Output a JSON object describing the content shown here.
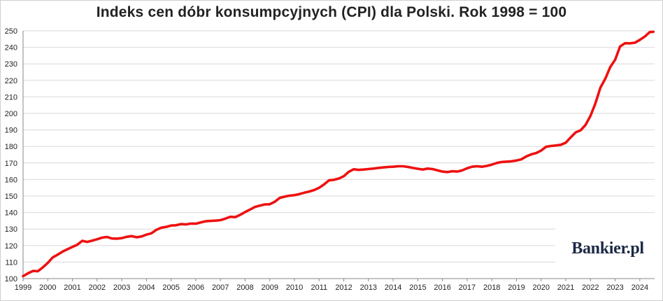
{
  "title": "Indeks cen dóbr konsumpcyjnych (CPI) dla Polski. Rok 1998 = 100",
  "logo_text": "Bankier.pl",
  "colors": {
    "line": "#ee1111",
    "grid": "#d9d9d9",
    "axis": "#888888"
  },
  "chart_data": {
    "type": "line",
    "title": "Indeks cen dóbr konsumpcyjnych (CPI) dla Polski. Rok 1998 = 100",
    "xlabel": "",
    "ylabel": "",
    "xlim": [
      1999,
      2024.6
    ],
    "ylim": [
      100,
      250
    ],
    "x_ticks": [
      1999,
      2000,
      2001,
      2002,
      2003,
      2004,
      2005,
      2006,
      2007,
      2008,
      2009,
      2010,
      2011,
      2012,
      2013,
      2014,
      2015,
      2016,
      2017,
      2018,
      2019,
      2020,
      2021,
      2022,
      2023,
      2024
    ],
    "y_ticks": [
      100,
      110,
      120,
      130,
      140,
      150,
      160,
      170,
      180,
      190,
      200,
      210,
      220,
      230,
      240,
      250
    ],
    "grid": true,
    "legend": "none",
    "series": [
      {
        "name": "",
        "points": [
          [
            1999.0,
            101.5
          ],
          [
            1999.2,
            103.2
          ],
          [
            1999.4,
            104.6
          ],
          [
            1999.6,
            104.5
          ],
          [
            1999.8,
            106.8
          ],
          [
            2000.0,
            109.5
          ],
          [
            2000.2,
            112.8
          ],
          [
            2000.4,
            114.5
          ],
          [
            2000.6,
            116.3
          ],
          [
            2000.8,
            117.8
          ],
          [
            2001.0,
            119.2
          ],
          [
            2001.2,
            120.5
          ],
          [
            2001.4,
            122.9
          ],
          [
            2001.6,
            122.2
          ],
          [
            2001.8,
            123.0
          ],
          [
            2002.0,
            123.8
          ],
          [
            2002.2,
            124.8
          ],
          [
            2002.4,
            125.2
          ],
          [
            2002.6,
            124.3
          ],
          [
            2002.8,
            124.2
          ],
          [
            2003.0,
            124.5
          ],
          [
            2003.2,
            125.3
          ],
          [
            2003.4,
            125.7
          ],
          [
            2003.6,
            125.0
          ],
          [
            2003.8,
            125.5
          ],
          [
            2004.0,
            126.6
          ],
          [
            2004.2,
            127.4
          ],
          [
            2004.4,
            129.5
          ],
          [
            2004.6,
            130.8
          ],
          [
            2004.8,
            131.3
          ],
          [
            2005.0,
            132.1
          ],
          [
            2005.2,
            132.3
          ],
          [
            2005.4,
            133.0
          ],
          [
            2005.6,
            132.8
          ],
          [
            2005.8,
            133.3
          ],
          [
            2006.0,
            133.2
          ],
          [
            2006.2,
            134.0
          ],
          [
            2006.4,
            134.7
          ],
          [
            2006.6,
            134.9
          ],
          [
            2006.8,
            135.1
          ],
          [
            2007.0,
            135.4
          ],
          [
            2007.2,
            136.3
          ],
          [
            2007.4,
            137.4
          ],
          [
            2007.6,
            137.2
          ],
          [
            2007.8,
            138.6
          ],
          [
            2008.0,
            140.3
          ],
          [
            2008.2,
            141.8
          ],
          [
            2008.4,
            143.4
          ],
          [
            2008.6,
            144.2
          ],
          [
            2008.8,
            144.9
          ],
          [
            2009.0,
            145.0
          ],
          [
            2009.2,
            146.5
          ],
          [
            2009.4,
            148.8
          ],
          [
            2009.6,
            149.6
          ],
          [
            2009.8,
            150.2
          ],
          [
            2010.0,
            150.5
          ],
          [
            2010.2,
            151.2
          ],
          [
            2010.4,
            152.0
          ],
          [
            2010.6,
            152.7
          ],
          [
            2010.8,
            153.6
          ],
          [
            2011.0,
            155.0
          ],
          [
            2011.2,
            157.0
          ],
          [
            2011.4,
            159.5
          ],
          [
            2011.6,
            159.8
          ],
          [
            2011.8,
            160.6
          ],
          [
            2012.0,
            162.0
          ],
          [
            2012.2,
            164.6
          ],
          [
            2012.4,
            166.2
          ],
          [
            2012.6,
            165.8
          ],
          [
            2012.8,
            166.0
          ],
          [
            2013.0,
            166.3
          ],
          [
            2013.2,
            166.6
          ],
          [
            2013.4,
            167.0
          ],
          [
            2013.6,
            167.3
          ],
          [
            2013.8,
            167.6
          ],
          [
            2014.0,
            167.7
          ],
          [
            2014.2,
            168.0
          ],
          [
            2014.4,
            168.0
          ],
          [
            2014.6,
            167.6
          ],
          [
            2014.8,
            167.0
          ],
          [
            2015.0,
            166.5
          ],
          [
            2015.2,
            166.0
          ],
          [
            2015.4,
            166.6
          ],
          [
            2015.6,
            166.3
          ],
          [
            2015.8,
            165.5
          ],
          [
            2016.0,
            164.8
          ],
          [
            2016.2,
            164.5
          ],
          [
            2016.4,
            165.0
          ],
          [
            2016.6,
            164.8
          ],
          [
            2016.8,
            165.5
          ],
          [
            2017.0,
            166.8
          ],
          [
            2017.2,
            167.7
          ],
          [
            2017.4,
            168.0
          ],
          [
            2017.6,
            167.7
          ],
          [
            2017.8,
            168.2
          ],
          [
            2018.0,
            169.0
          ],
          [
            2018.2,
            170.0
          ],
          [
            2018.4,
            170.6
          ],
          [
            2018.6,
            170.8
          ],
          [
            2018.8,
            171.0
          ],
          [
            2019.0,
            171.5
          ],
          [
            2019.2,
            172.2
          ],
          [
            2019.4,
            174.0
          ],
          [
            2019.6,
            175.2
          ],
          [
            2019.8,
            176.0
          ],
          [
            2020.0,
            177.5
          ],
          [
            2020.2,
            179.8
          ],
          [
            2020.4,
            180.3
          ],
          [
            2020.6,
            180.6
          ],
          [
            2020.8,
            181.0
          ],
          [
            2021.0,
            182.3
          ],
          [
            2021.2,
            185.5
          ],
          [
            2021.4,
            188.5
          ],
          [
            2021.6,
            189.8
          ],
          [
            2021.8,
            193.0
          ],
          [
            2022.0,
            198.5
          ],
          [
            2022.2,
            206.0
          ],
          [
            2022.4,
            215.5
          ],
          [
            2022.6,
            221.0
          ],
          [
            2022.8,
            228.0
          ],
          [
            2023.0,
            232.5
          ],
          [
            2023.2,
            240.5
          ],
          [
            2023.4,
            242.5
          ],
          [
            2023.6,
            242.4
          ],
          [
            2023.8,
            242.8
          ],
          [
            2024.0,
            244.5
          ],
          [
            2024.2,
            246.5
          ],
          [
            2024.4,
            249.2
          ],
          [
            2024.55,
            249.4
          ]
        ]
      }
    ]
  }
}
